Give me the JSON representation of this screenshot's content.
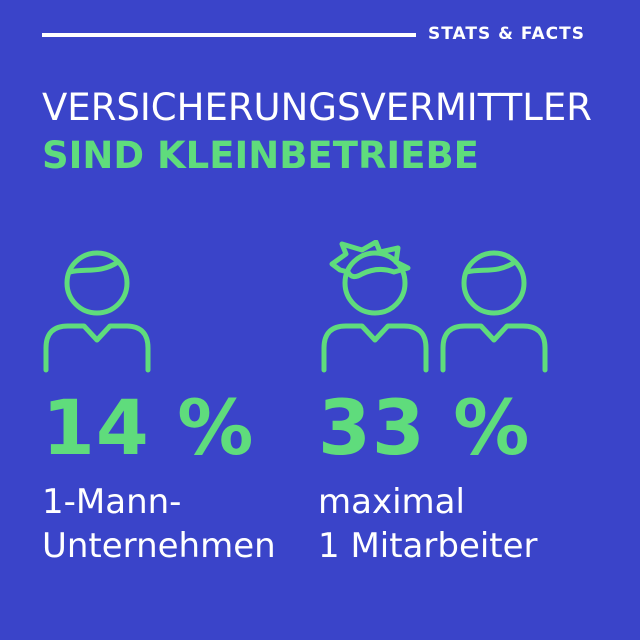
{
  "header": {
    "tag": "STATS & FACTS"
  },
  "title": {
    "line1": "VERSICHERUNGSVERMITTLER",
    "line2": "SIND KLEINBETRIEBE"
  },
  "colors": {
    "background": "#3a44c9",
    "accent": "#5fdc7c",
    "text": "#ffffff"
  },
  "stats": [
    {
      "value": "14 %",
      "label_line1": "1-Mann-",
      "label_line2": "Unternehmen",
      "icon": "person-icon"
    },
    {
      "value": "33 %",
      "label_line1": "maximal",
      "label_line2": "1 Mitarbeiter",
      "icon": "two-persons-icon"
    }
  ]
}
